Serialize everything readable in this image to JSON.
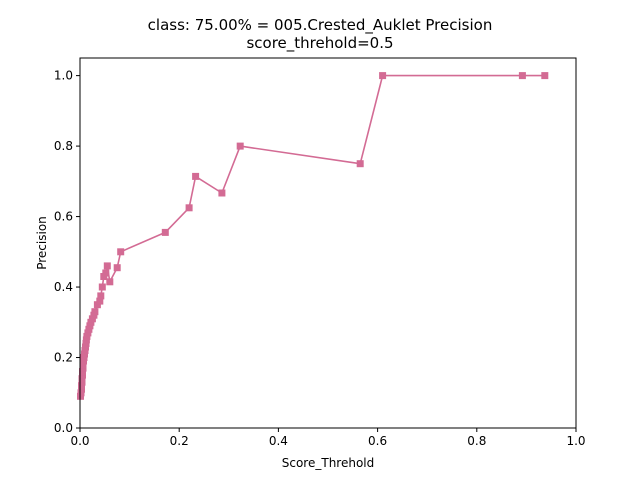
{
  "chart_data": {
    "type": "line",
    "title": "class: 75.00% = 005.Crested_Auklet Precision",
    "subtitle": "score_threhold=0.5",
    "xlabel": "Score_Threhold",
    "ylabel": "Precision",
    "xlim": [
      0.0,
      1.0
    ],
    "ylim": [
      0.0,
      1.05
    ],
    "x_ticks": [
      "0.0",
      "0.2",
      "0.4",
      "0.6",
      "0.8",
      "1.0"
    ],
    "y_ticks": [
      "0.0",
      "0.2",
      "0.4",
      "0.6",
      "0.8",
      "1.0"
    ],
    "grid": false,
    "marker": "square",
    "color": "#d36b94",
    "series": [
      {
        "points": [
          [
            0.001,
            0.09
          ],
          [
            0.002,
            0.1
          ],
          [
            0.003,
            0.11
          ],
          [
            0.003,
            0.12
          ],
          [
            0.004,
            0.13
          ],
          [
            0.004,
            0.14
          ],
          [
            0.005,
            0.15
          ],
          [
            0.005,
            0.16
          ],
          [
            0.006,
            0.17
          ],
          [
            0.006,
            0.18
          ],
          [
            0.007,
            0.19
          ],
          [
            0.008,
            0.2
          ],
          [
            0.009,
            0.21
          ],
          [
            0.01,
            0.22
          ],
          [
            0.011,
            0.23
          ],
          [
            0.012,
            0.24
          ],
          [
            0.013,
            0.25
          ],
          [
            0.014,
            0.26
          ],
          [
            0.016,
            0.27
          ],
          [
            0.018,
            0.28
          ],
          [
            0.02,
            0.29
          ],
          [
            0.022,
            0.3
          ],
          [
            0.025,
            0.31
          ],
          [
            0.028,
            0.32
          ],
          [
            0.03,
            0.33
          ],
          [
            0.035,
            0.35
          ],
          [
            0.04,
            0.36
          ],
          [
            0.042,
            0.375
          ],
          [
            0.045,
            0.4
          ],
          [
            0.048,
            0.43
          ],
          [
            0.052,
            0.44
          ],
          [
            0.055,
            0.46
          ],
          [
            0.06,
            0.415
          ],
          [
            0.075,
            0.455
          ],
          [
            0.082,
            0.5
          ],
          [
            0.172,
            0.555
          ],
          [
            0.22,
            0.625
          ],
          [
            0.233,
            0.714
          ],
          [
            0.286,
            0.667
          ],
          [
            0.323,
            0.8
          ],
          [
            0.565,
            0.75
          ],
          [
            0.61,
            1.0
          ],
          [
            0.892,
            1.0
          ],
          [
            0.937,
            1.0
          ]
        ]
      }
    ]
  }
}
